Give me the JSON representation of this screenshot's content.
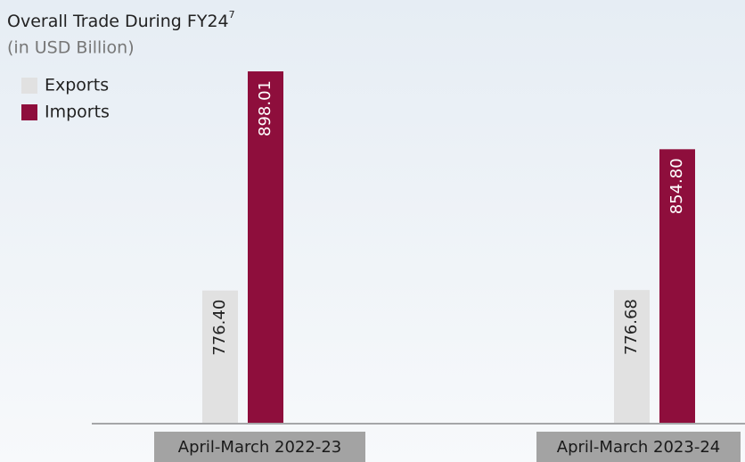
{
  "chart_data": {
    "type": "bar",
    "title": "Overall Trade During FY24",
    "title_note": "7",
    "subtitle": "(in USD Billion)",
    "categories": [
      "April-March 2022-23",
      "April-March 2023-24"
    ],
    "series": [
      {
        "name": "Exports",
        "color": "#e1e1e1",
        "values": [
          776.4,
          776.68
        ],
        "value_labels": [
          "776.40",
          "776.68"
        ]
      },
      {
        "name": "Imports",
        "color": "#8e0e3c",
        "values": [
          898.01,
          854.8
        ],
        "value_labels": [
          "898.01",
          "854.80"
        ]
      }
    ],
    "ylim": [
      703,
      900
    ]
  }
}
